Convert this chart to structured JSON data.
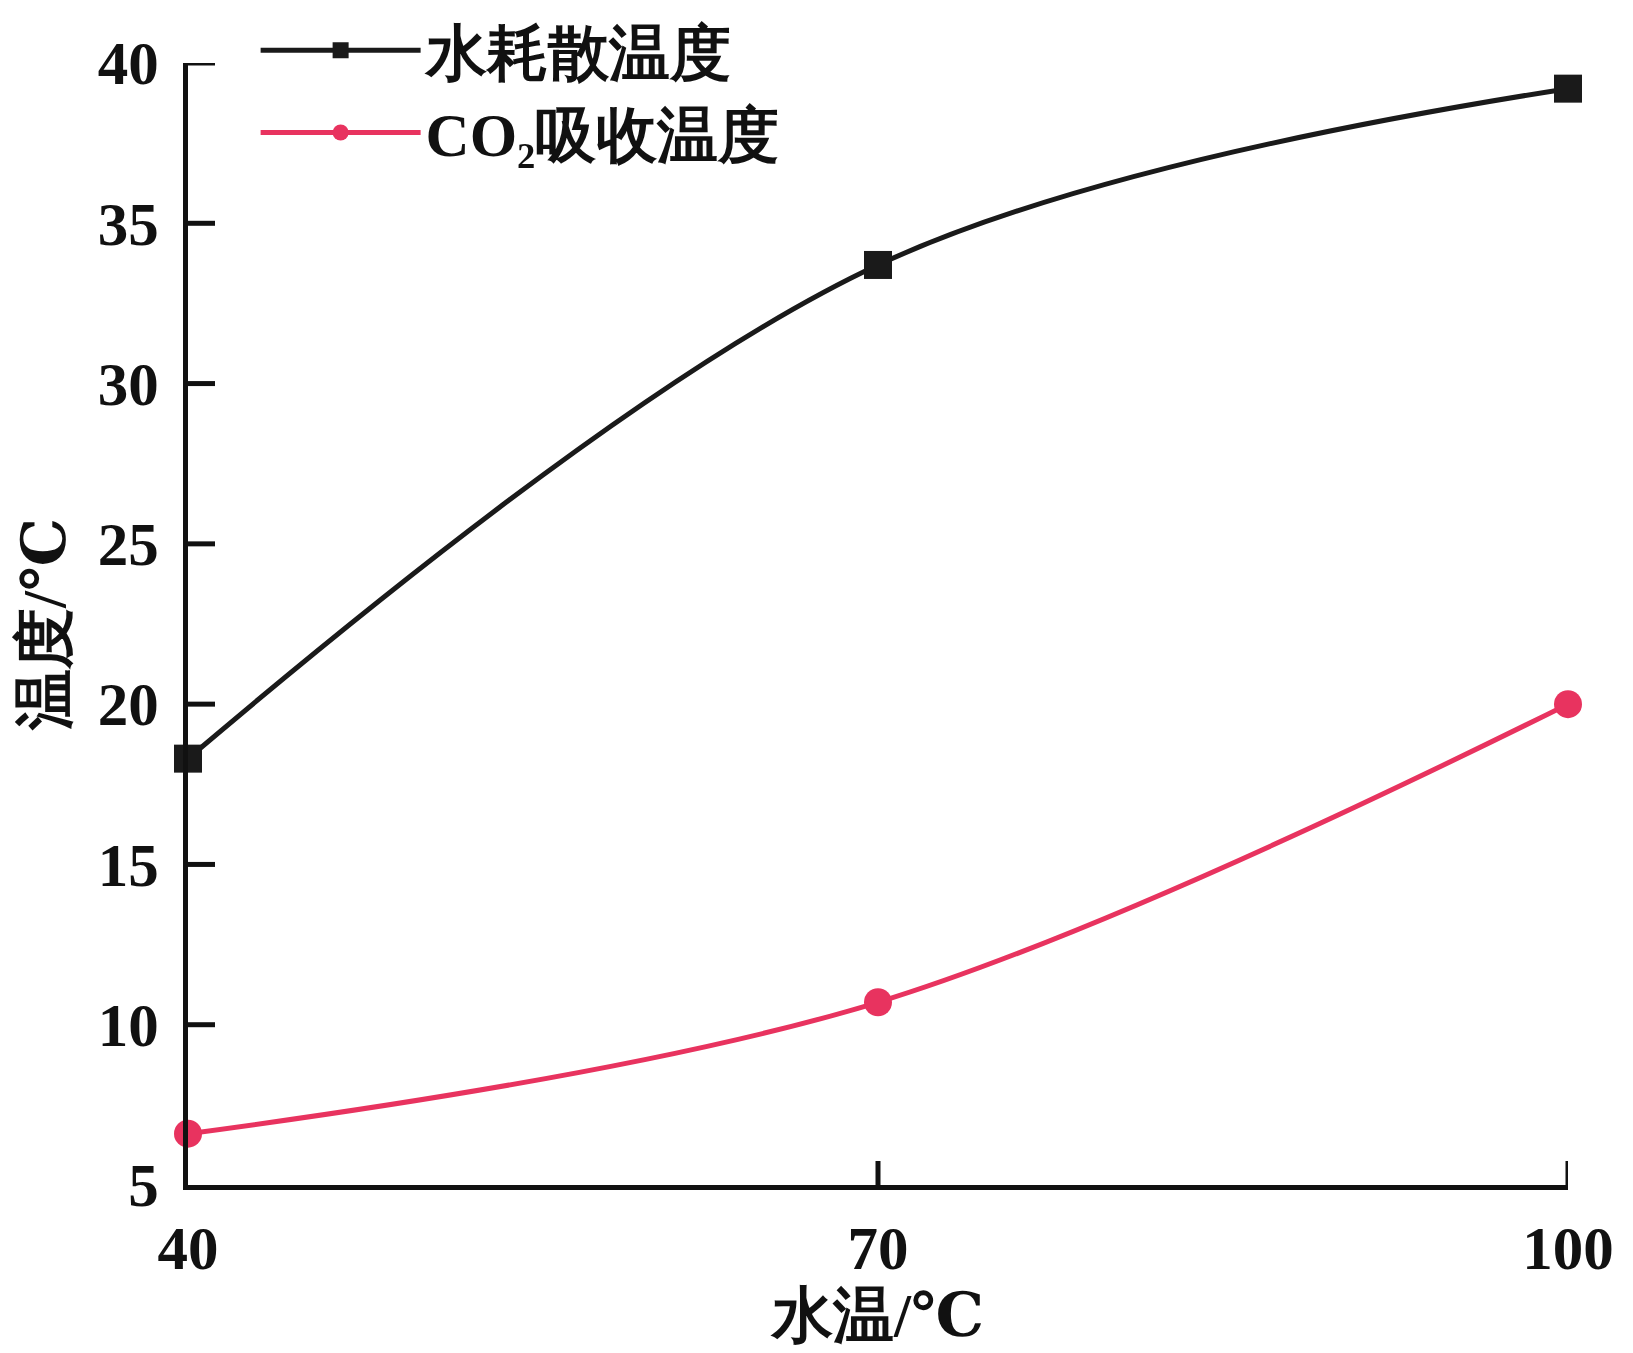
{
  "chart_data": {
    "type": "line",
    "xlabel": "水温/℃",
    "ylabel": "温度/℃",
    "x": [
      40,
      70,
      100
    ],
    "series": [
      {
        "name": "水耗散温度",
        "color": "#1a1a1a",
        "marker": "square",
        "values": [
          18.3,
          33.7,
          39.2
        ]
      },
      {
        "name": "CO₂吸收温度",
        "color": "#e8335f",
        "marker": "circle",
        "values": [
          6.6,
          10.7,
          20.0
        ]
      }
    ],
    "xlim": [
      40,
      100
    ],
    "ylim": [
      5,
      40
    ],
    "xticks": [
      40,
      70,
      100
    ],
    "yticks": [
      5,
      10,
      15,
      20,
      25,
      30,
      35,
      40
    ],
    "legend": "top left",
    "line_style": "solid"
  }
}
